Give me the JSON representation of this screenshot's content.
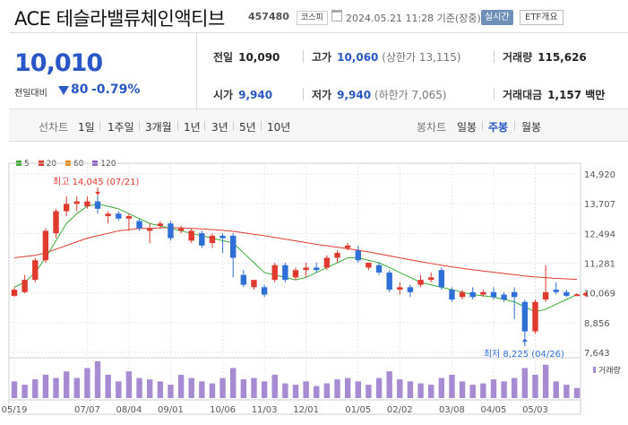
{
  "header": {
    "name": "ACE 테슬라밸류체인액티브",
    "code": "457480",
    "market": "코스피",
    "timestamp": "2024.05.21 11:28 기준(장중)",
    "realtime_label": "실시간",
    "etf_label": "ETF개요"
  },
  "quote": {
    "current": "10,010",
    "compare_label": "전일대비",
    "change": "80",
    "change_pct": "-0.79%",
    "direction": "down",
    "prev_close_label": "전일",
    "prev_close": "10,090",
    "high_label": "고가",
    "high": "10,060",
    "upper_limit": "(상한가 13,115)",
    "volume_label": "거래량",
    "volume": "115,626",
    "open_label": "시가",
    "open": "9,940",
    "low_label": "저가",
    "low": "9,940",
    "lower_limit": "(하한가 7,065)",
    "amount_label": "거래대금",
    "amount": "1,157 백만"
  },
  "periods": {
    "line_label": "선차트",
    "line_options": [
      "1일",
      "1주일",
      "3개월",
      "1년",
      "3년",
      "5년",
      "10년"
    ],
    "candle_label": "봉차트",
    "candle_options": [
      "일봉",
      "주봉",
      "월봉"
    ],
    "selected_candle": "주봉"
  },
  "colors": {
    "up": "#e03a2f",
    "down": "#2f6fd8",
    "ma5": "#3aaa35",
    "ma20": "#e03a2f",
    "ma60": "#e38a1e",
    "ma120": "#8a5fc4",
    "volume": "#a68ad2"
  },
  "chart_data": {
    "type": "candlestick",
    "legend": [
      "5",
      "20",
      "60",
      "120"
    ],
    "y_ticks": [
      14920,
      13707,
      12494,
      11281,
      10069,
      8856,
      7643
    ],
    "y_tick_labels": [
      "14,920",
      "13,707",
      "12,494",
      "11,281",
      "10,069",
      "8,856",
      "7,643"
    ],
    "ylim": [
      7643,
      14920
    ],
    "x_tick_labels": [
      "05/19",
      "07/07",
      "08/04",
      "09/01",
      "10/06",
      "11/03",
      "12/01",
      "01/05",
      "02/02",
      "03/08",
      "04/05",
      "05/03"
    ],
    "x_tick_index": [
      0,
      7,
      11,
      15,
      20,
      24,
      28,
      33,
      37,
      42,
      46,
      50
    ],
    "high_annotation": "최고 14,045 (07/21)",
    "high_index": 8,
    "high_value": 14045,
    "low_annotation": "최저 8,225 (04/26)",
    "low_index": 49,
    "low_value": 8225,
    "volume_label": "거래량",
    "candles": [
      [
        9950,
        10300,
        10200,
        9900
      ],
      [
        10100,
        10800,
        10600,
        10050
      ],
      [
        10600,
        11500,
        11400,
        10500
      ],
      [
        11400,
        12700,
        12600,
        11300
      ],
      [
        12500,
        13500,
        13400,
        12300
      ],
      [
        13400,
        14000,
        13700,
        13200
      ],
      [
        13700,
        14000,
        13800,
        13400
      ],
      [
        13600,
        14000,
        13800,
        13500
      ],
      [
        13800,
        14045,
        13500,
        13300
      ],
      [
        13200,
        13400,
        13300,
        12900
      ],
      [
        13300,
        13400,
        13100,
        13000
      ],
      [
        13100,
        13300,
        13200,
        12600
      ],
      [
        13000,
        13100,
        12700,
        12600
      ],
      [
        12600,
        12900,
        12700,
        12100
      ],
      [
        12800,
        13000,
        12900,
        12700
      ],
      [
        12900,
        13000,
        12300,
        12200
      ],
      [
        12600,
        12800,
        12700,
        12500
      ],
      [
        12200,
        12700,
        12600,
        12100
      ],
      [
        12500,
        12600,
        12000,
        11900
      ],
      [
        12100,
        12500,
        12400,
        11900
      ],
      [
        12400,
        12500,
        12300,
        11700
      ],
      [
        12400,
        12500,
        11500,
        10700
      ],
      [
        10800,
        11000,
        10400,
        10300
      ],
      [
        10300,
        10400,
        10600,
        10200
      ],
      [
        10300,
        10400,
        10000,
        9900
      ],
      [
        10600,
        11300,
        11200,
        10500
      ],
      [
        11200,
        11300,
        10600,
        10500
      ],
      [
        10700,
        11100,
        11000,
        10600
      ],
      [
        11000,
        11300,
        11100,
        10700
      ],
      [
        11100,
        11300,
        11000,
        10900
      ],
      [
        11100,
        11600,
        11500,
        11000
      ],
      [
        11500,
        11800,
        11700,
        11300
      ],
      [
        11900,
        12100,
        12000,
        11800
      ],
      [
        11800,
        12000,
        11400,
        11300
      ],
      [
        11100,
        11200,
        11300,
        11000
      ],
      [
        11200,
        11300,
        10900,
        10800
      ],
      [
        10900,
        11000,
        10200,
        10100
      ],
      [
        10200,
        10500,
        10300,
        10000
      ],
      [
        10300,
        10400,
        10100,
        9900
      ],
      [
        10400,
        10800,
        10600,
        10300
      ],
      [
        10600,
        10900,
        10700,
        10500
      ],
      [
        11000,
        11100,
        10300,
        10200
      ],
      [
        10200,
        10300,
        9800,
        9700
      ],
      [
        9900,
        10200,
        10100,
        9800
      ],
      [
        10100,
        10300,
        9900,
        9800
      ],
      [
        10000,
        10200,
        10100,
        9900
      ],
      [
        10100,
        10300,
        9900,
        9800
      ],
      [
        10000,
        10100,
        9800,
        9700
      ],
      [
        10100,
        10300,
        9900,
        9000
      ],
      [
        9700,
        9800,
        8500,
        8225
      ],
      [
        8500,
        9800,
        9700,
        8400
      ],
      [
        9800,
        11200,
        10100,
        9700
      ],
      [
        10200,
        10500,
        10100,
        10000
      ],
      [
        10100,
        10200,
        9950,
        9900
      ],
      [
        9940,
        10060,
        10010,
        9940
      ]
    ],
    "ma5": [
      10300,
      10500,
      10900,
      11500,
      12200,
      12900,
      13300,
      13600,
      13700,
      13600,
      13500,
      13300,
      13100,
      12900,
      12800,
      12700,
      12600,
      12500,
      12400,
      12300,
      12200,
      12100,
      11700,
      11300,
      10900,
      10800,
      10700,
      10600,
      10700,
      10900,
      11100,
      11300,
      11500,
      11500,
      11400,
      11300,
      11100,
      10900,
      10700,
      10500,
      10400,
      10300,
      10200,
      10100,
      10000,
      9950,
      9900,
      9800,
      9700,
      9500,
      9300,
      9400,
      9600,
      9800,
      10000
    ],
    "ma20": [
      11500,
      11550,
      11600,
      11700,
      11850,
      12000,
      12150,
      12300,
      12400,
      12500,
      12600,
      12650,
      12700,
      12700,
      12720,
      12730,
      12720,
      12700,
      12680,
      12650,
      12620,
      12580,
      12520,
      12460,
      12400,
      12330,
      12260,
      12190,
      12120,
      12050,
      11990,
      11930,
      11870,
      11810,
      11740,
      11660,
      11580,
      11500,
      11420,
      11340,
      11270,
      11200,
      11130,
      11070,
      11010,
      10960,
      10910,
      10860,
      10810,
      10760,
      10720,
      10690,
      10660,
      10640,
      10620
    ],
    "volume": [
      25,
      20,
      28,
      35,
      30,
      40,
      30,
      45,
      55,
      35,
      25,
      40,
      30,
      28,
      25,
      20,
      35,
      30,
      25,
      22,
      30,
      45,
      28,
      30,
      25,
      35,
      22,
      20,
      25,
      18,
      22,
      28,
      30,
      25,
      20,
      30,
      40,
      28,
      25,
      22,
      20,
      30,
      35,
      25,
      20,
      22,
      28,
      25,
      30,
      45,
      35,
      50,
      25,
      20,
      15
    ]
  }
}
